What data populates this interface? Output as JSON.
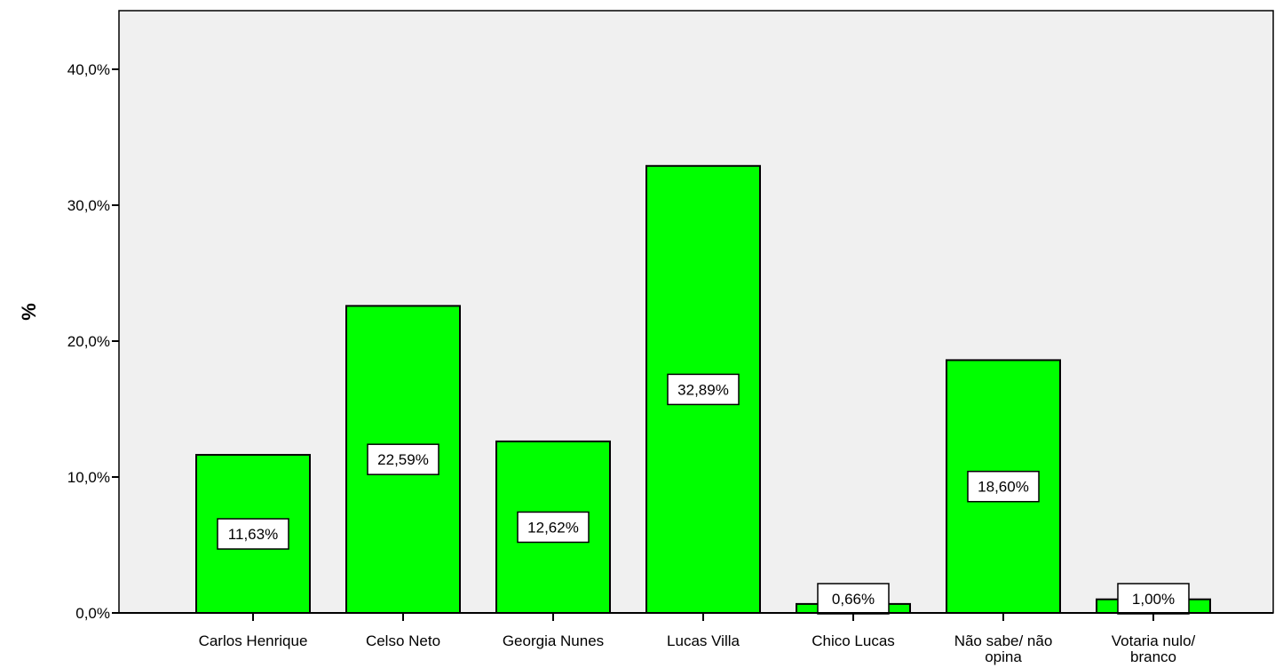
{
  "chart_data": {
    "type": "bar",
    "title": "",
    "xlabel": "",
    "ylabel": "%",
    "ylim": [
      0,
      44
    ],
    "yticks": [
      0,
      10,
      20,
      30,
      40
    ],
    "ytick_labels": [
      "0,0%",
      "10,0%",
      "20,0%",
      "30,0%",
      "40,0%"
    ],
    "categories": [
      [
        "Carlos Henrique"
      ],
      [
        "Celso Neto"
      ],
      [
        "Georgia Nunes"
      ],
      [
        "Lucas Villa"
      ],
      [
        "Chico Lucas"
      ],
      [
        "Não sabe/ não",
        "opina"
      ],
      [
        "Votaria nulo/",
        "branco"
      ]
    ],
    "values": [
      11.63,
      22.59,
      12.62,
      32.89,
      0.66,
      18.6,
      1.0
    ],
    "data_labels": [
      "11,63%",
      "22,59%",
      "12,62%",
      "32,89%",
      "0,66%",
      "18,60%",
      "1,00%"
    ],
    "bar_color": "#00ff00",
    "plot_background": "#f0f0f0",
    "grid": false,
    "legend": "none"
  }
}
